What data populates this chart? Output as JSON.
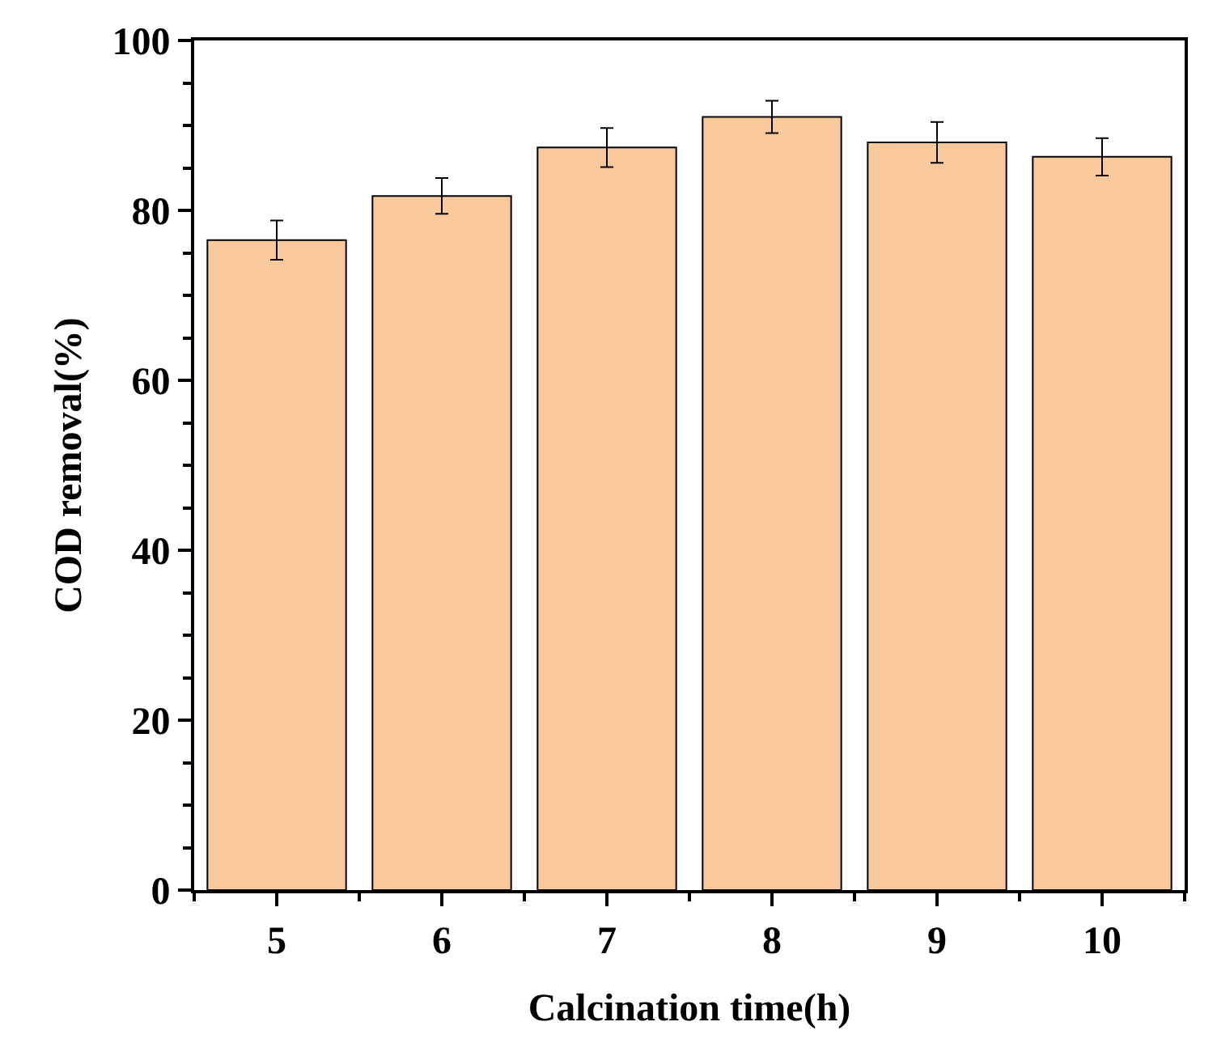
{
  "chart_data": {
    "type": "bar",
    "xlabel": "Calcination time(h)",
    "ylabel": "COD removal(%)",
    "x": [
      5,
      6,
      7,
      8,
      9,
      10
    ],
    "values": [
      76.5,
      81.7,
      87.4,
      91.0,
      88.0,
      86.3
    ],
    "errors": [
      2.3,
      2.1,
      2.3,
      1.9,
      2.4,
      2.2
    ],
    "color": "#f9c89b",
    "xlim": [
      4.5,
      10.5
    ],
    "xticks": [
      5,
      6,
      7,
      8,
      9,
      10
    ],
    "ylim": [
      0,
      100
    ],
    "yticks": [
      0,
      20,
      40,
      60,
      80,
      100
    ]
  }
}
